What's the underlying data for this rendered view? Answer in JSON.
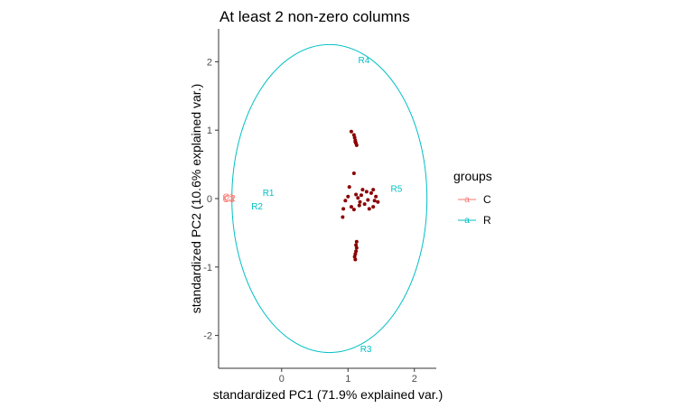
{
  "chart_data": {
    "type": "scatter",
    "title": "At least 2 non-zero columns",
    "xlabel": "standardized PC1 (71.9% explained var.)",
    "ylabel": "standardized PC2 (10.6% explained var.)",
    "xlim": [
      -0.95,
      2.33
    ],
    "ylim": [
      -2.48,
      2.48
    ],
    "x_ticks": [
      0,
      1,
      2
    ],
    "y_ticks": [
      -2,
      -1,
      0,
      1,
      2
    ],
    "grid": false,
    "legend": {
      "title": "groups",
      "placement": "right",
      "entries": [
        {
          "name": "C",
          "color": "#F8766D"
        },
        {
          "name": "R",
          "color": "#00BFC4"
        }
      ]
    },
    "circle": {
      "center": [
        0.72,
        0.0
      ],
      "rx": 1.47,
      "ry": 2.25,
      "color": "#00BFC4"
    },
    "points_color": "#8B0000",
    "points": [
      {
        "x": 1.05,
        "y": 0.98
      },
      {
        "x": 1.09,
        "y": 0.93
      },
      {
        "x": 1.1,
        "y": 0.89
      },
      {
        "x": 1.11,
        "y": 0.85
      },
      {
        "x": 1.12,
        "y": 0.81
      },
      {
        "x": 1.13,
        "y": 0.78
      },
      {
        "x": 1.11,
        "y": 0.83
      },
      {
        "x": 1.09,
        "y": 0.37
      },
      {
        "x": 1.02,
        "y": 0.17
      },
      {
        "x": 1.0,
        "y": 0.03
      },
      {
        "x": 0.96,
        "y": -0.03
      },
      {
        "x": 1.12,
        "y": 0.06
      },
      {
        "x": 1.15,
        "y": 0.01
      },
      {
        "x": 1.2,
        "y": 0.05
      },
      {
        "x": 1.18,
        "y": -0.05
      },
      {
        "x": 1.25,
        "y": -0.08
      },
      {
        "x": 1.3,
        "y": -0.02
      },
      {
        "x": 1.35,
        "y": 0.08
      },
      {
        "x": 1.38,
        "y": 0.13
      },
      {
        "x": 1.42,
        "y": 0.03
      },
      {
        "x": 1.4,
        "y": -0.03
      },
      {
        "x": 1.38,
        "y": -0.12
      },
      {
        "x": 1.32,
        "y": -0.15
      },
      {
        "x": 1.28,
        "y": 0.1
      },
      {
        "x": 1.22,
        "y": 0.13
      },
      {
        "x": 1.05,
        "y": -0.12
      },
      {
        "x": 1.09,
        "y": -0.16
      },
      {
        "x": 0.92,
        "y": -0.27
      },
      {
        "x": 0.93,
        "y": -0.15
      },
      {
        "x": 1.45,
        "y": -0.05
      },
      {
        "x": 1.17,
        "y": -0.1
      },
      {
        "x": 1.13,
        "y": -0.63
      },
      {
        "x": 1.12,
        "y": -0.68
      },
      {
        "x": 1.13,
        "y": -0.72
      },
      {
        "x": 1.12,
        "y": -0.77
      },
      {
        "x": 1.11,
        "y": -0.81
      },
      {
        "x": 1.1,
        "y": -0.85
      },
      {
        "x": 1.11,
        "y": -0.89
      }
    ],
    "row_labels": [
      {
        "text": "R1",
        "x": -0.2,
        "y": 0.08
      },
      {
        "text": "R2",
        "x": -0.37,
        "y": -0.12
      },
      {
        "text": "R3",
        "x": 1.27,
        "y": -2.2
      },
      {
        "text": "R4",
        "x": 1.24,
        "y": 2.02
      },
      {
        "text": "R5",
        "x": 1.73,
        "y": 0.14
      }
    ],
    "col_labels": [
      {
        "text": "C1",
        "x": -0.8,
        "y": 0.02
      },
      {
        "text": "C2",
        "x": -0.78,
        "y": 0.0
      },
      {
        "text": "C3",
        "x": -0.8,
        "y": -0.01
      }
    ]
  }
}
